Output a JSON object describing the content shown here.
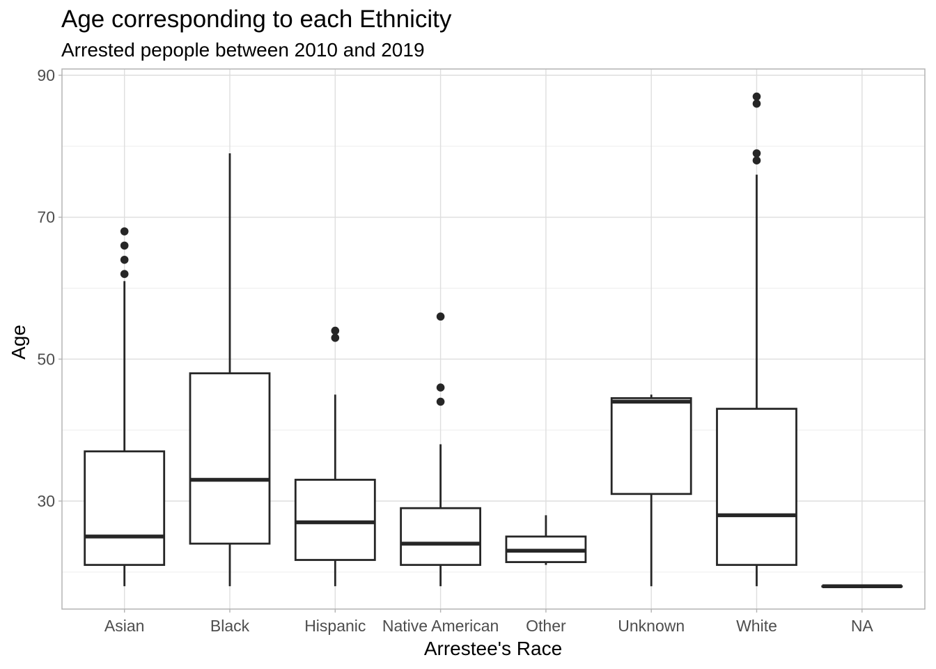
{
  "chart_data": {
    "type": "boxplot",
    "title": "Age corresponding to each Ethnicity",
    "subtitle": "Arrested pepople between 2010 and 2019",
    "xlabel": "Arrestee's Race",
    "ylabel": "Age",
    "ylim": [
      15,
      90
    ],
    "y_ticks": [
      30,
      50,
      70,
      90
    ],
    "grid": true,
    "categories": [
      "Asian",
      "Black",
      "Hispanic",
      "Native American",
      "Other",
      "Unknown",
      "White",
      "NA"
    ],
    "boxes": [
      {
        "category": "Asian",
        "whisker_low": 18,
        "q1": 21,
        "median": 25,
        "q3": 37,
        "whisker_high": 61,
        "outliers": [
          62,
          64,
          66,
          68
        ]
      },
      {
        "category": "Black",
        "whisker_low": 18,
        "q1": 24,
        "median": 33,
        "q3": 48,
        "whisker_high": 79,
        "outliers": []
      },
      {
        "category": "Hispanic",
        "whisker_low": 18,
        "q1": 21.7,
        "median": 27,
        "q3": 33,
        "whisker_high": 45,
        "outliers": [
          53,
          54
        ]
      },
      {
        "category": "Native American",
        "whisker_low": 18,
        "q1": 21,
        "median": 24,
        "q3": 29,
        "whisker_high": 38,
        "outliers": [
          44,
          46,
          56
        ]
      },
      {
        "category": "Other",
        "whisker_low": 21,
        "q1": 21.4,
        "median": 23,
        "q3": 25,
        "whisker_high": 28,
        "outliers": []
      },
      {
        "category": "Unknown",
        "whisker_low": 18,
        "q1": 31,
        "median": 44,
        "q3": 44.5,
        "whisker_high": 45,
        "outliers": []
      },
      {
        "category": "White",
        "whisker_low": 18,
        "q1": 21,
        "median": 28,
        "q3": 43,
        "whisker_high": 76,
        "outliers": [
          78,
          79,
          86,
          87
        ]
      },
      {
        "category": "NA",
        "whisker_low": 18,
        "q1": 18,
        "median": 18,
        "q3": 18,
        "whisker_high": 18,
        "outliers": []
      }
    ]
  }
}
